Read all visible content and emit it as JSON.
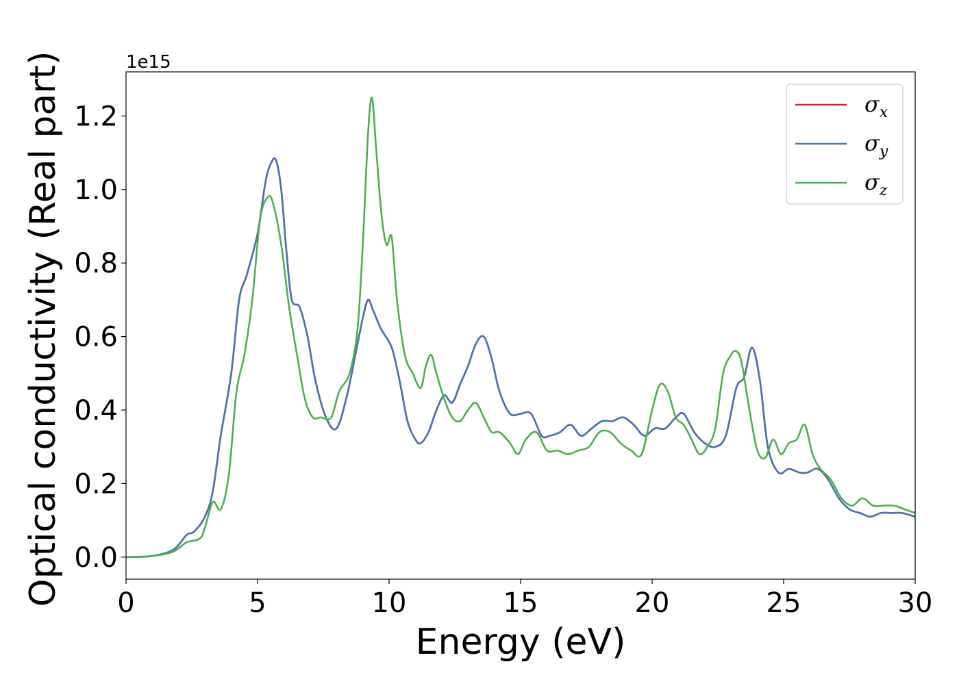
{
  "chart_data": {
    "type": "line",
    "xlabel": "Energy (eV)",
    "ylabel": "Optical conductivity (Real part)",
    "y_offset_text": "1e15",
    "xlim": [
      0,
      30
    ],
    "ylim": [
      -0.06,
      1.32
    ],
    "x_ticks": [
      0,
      5,
      10,
      15,
      20,
      25,
      30
    ],
    "x_tick_labels": [
      "0",
      "5",
      "10",
      "15",
      "20",
      "25",
      "30"
    ],
    "y_ticks": [
      0.0,
      0.2,
      0.4,
      0.6,
      0.8,
      1.0,
      1.2
    ],
    "y_tick_labels": [
      "0.0",
      "0.2",
      "0.4",
      "0.6",
      "0.8",
      "1.0",
      "1.2"
    ],
    "grid": false,
    "legend_position": "top-right",
    "series": [
      {
        "name": "σ_x",
        "legend_symbol": "σ",
        "legend_subscript": "x",
        "color": "#d62728",
        "x": [
          0,
          1,
          1.8,
          2.3,
          2.6,
          3.0,
          3.3,
          3.6,
          4.0,
          4.3,
          4.6,
          5.0,
          5.3,
          5.5,
          5.7,
          5.9,
          6.1,
          6.3,
          6.6,
          6.9,
          7.2,
          7.6,
          8.0,
          8.4,
          8.8,
          9.0,
          9.2,
          9.4,
          9.7,
          10.1,
          10.4,
          10.7,
          11.0,
          11.2,
          11.5,
          11.8,
          12.1,
          12.4,
          12.7,
          13.0,
          13.3,
          13.6,
          13.9,
          14.2,
          14.6,
          15.0,
          15.4,
          15.8,
          16.1,
          16.5,
          16.9,
          17.3,
          17.7,
          18.1,
          18.5,
          18.9,
          19.3,
          19.7,
          20.1,
          20.5,
          20.9,
          21.2,
          21.6,
          22.0,
          22.4,
          22.8,
          23.2,
          23.5,
          23.8,
          24.1,
          24.4,
          24.8,
          25.2,
          25.6,
          25.9,
          26.3,
          26.7,
          27.1,
          27.5,
          27.9,
          28.3,
          28.7,
          29.1,
          29.5,
          30
        ],
        "values": [
          0,
          0.003,
          0.02,
          0.06,
          0.07,
          0.11,
          0.18,
          0.33,
          0.5,
          0.7,
          0.77,
          0.88,
          1.02,
          1.07,
          1.08,
          1.0,
          0.83,
          0.7,
          0.68,
          0.6,
          0.48,
          0.38,
          0.35,
          0.44,
          0.58,
          0.65,
          0.7,
          0.67,
          0.62,
          0.57,
          0.48,
          0.37,
          0.32,
          0.31,
          0.34,
          0.4,
          0.44,
          0.42,
          0.47,
          0.52,
          0.58,
          0.6,
          0.54,
          0.45,
          0.39,
          0.39,
          0.39,
          0.33,
          0.33,
          0.34,
          0.36,
          0.33,
          0.35,
          0.37,
          0.37,
          0.38,
          0.36,
          0.33,
          0.35,
          0.35,
          0.38,
          0.39,
          0.34,
          0.31,
          0.3,
          0.33,
          0.46,
          0.49,
          0.57,
          0.48,
          0.3,
          0.23,
          0.24,
          0.23,
          0.23,
          0.24,
          0.21,
          0.16,
          0.13,
          0.12,
          0.11,
          0.12,
          0.12,
          0.12,
          0.11
        ]
      },
      {
        "name": "σ_y",
        "legend_symbol": "σ",
        "legend_subscript": "y",
        "color": "#4575b4",
        "x": [
          0,
          1,
          1.8,
          2.3,
          2.6,
          3.0,
          3.3,
          3.6,
          4.0,
          4.3,
          4.6,
          5.0,
          5.3,
          5.5,
          5.7,
          5.9,
          6.1,
          6.3,
          6.6,
          6.9,
          7.2,
          7.6,
          8.0,
          8.4,
          8.8,
          9.0,
          9.2,
          9.4,
          9.7,
          10.1,
          10.4,
          10.7,
          11.0,
          11.2,
          11.5,
          11.8,
          12.1,
          12.4,
          12.7,
          13.0,
          13.3,
          13.6,
          13.9,
          14.2,
          14.6,
          15.0,
          15.4,
          15.8,
          16.1,
          16.5,
          16.9,
          17.3,
          17.7,
          18.1,
          18.5,
          18.9,
          19.3,
          19.7,
          20.1,
          20.5,
          20.9,
          21.2,
          21.6,
          22.0,
          22.4,
          22.8,
          23.2,
          23.5,
          23.8,
          24.1,
          24.4,
          24.8,
          25.2,
          25.6,
          25.9,
          26.3,
          26.7,
          27.1,
          27.5,
          27.9,
          28.3,
          28.7,
          29.1,
          29.5,
          30
        ],
        "values": [
          0,
          0.003,
          0.02,
          0.06,
          0.07,
          0.11,
          0.18,
          0.33,
          0.5,
          0.7,
          0.77,
          0.88,
          1.02,
          1.07,
          1.08,
          1.0,
          0.83,
          0.7,
          0.68,
          0.6,
          0.48,
          0.38,
          0.35,
          0.44,
          0.58,
          0.65,
          0.7,
          0.67,
          0.62,
          0.57,
          0.48,
          0.37,
          0.32,
          0.31,
          0.34,
          0.4,
          0.44,
          0.42,
          0.47,
          0.52,
          0.58,
          0.6,
          0.54,
          0.45,
          0.39,
          0.39,
          0.39,
          0.33,
          0.33,
          0.34,
          0.36,
          0.33,
          0.35,
          0.37,
          0.37,
          0.38,
          0.36,
          0.33,
          0.35,
          0.35,
          0.38,
          0.39,
          0.34,
          0.31,
          0.3,
          0.33,
          0.46,
          0.49,
          0.57,
          0.48,
          0.3,
          0.23,
          0.24,
          0.23,
          0.23,
          0.24,
          0.21,
          0.16,
          0.13,
          0.12,
          0.11,
          0.12,
          0.12,
          0.12,
          0.11
        ]
      },
      {
        "name": "σ_z",
        "legend_symbol": "σ",
        "legend_subscript": "z",
        "color": "#4daf4a",
        "x": [
          0,
          1,
          1.8,
          2.3,
          2.8,
          3.0,
          3.3,
          3.6,
          3.9,
          4.2,
          4.5,
          4.8,
          5.1,
          5.4,
          5.6,
          5.9,
          6.2,
          6.5,
          6.8,
          7.1,
          7.4,
          7.8,
          8.1,
          8.5,
          8.8,
          9.0,
          9.2,
          9.35,
          9.5,
          9.7,
          9.9,
          10.1,
          10.3,
          10.6,
          10.9,
          11.2,
          11.4,
          11.6,
          11.8,
          12.1,
          12.4,
          12.7,
          13.0,
          13.3,
          13.6,
          13.9,
          14.2,
          14.6,
          14.9,
          15.2,
          15.6,
          16.0,
          16.4,
          16.8,
          17.2,
          17.6,
          18.0,
          18.4,
          18.8,
          19.2,
          19.6,
          20.0,
          20.3,
          20.6,
          20.9,
          21.2,
          21.5,
          21.8,
          22.1,
          22.4,
          22.7,
          23.0,
          23.2,
          23.4,
          23.7,
          24.0,
          24.3,
          24.6,
          24.9,
          25.2,
          25.5,
          25.8,
          26.1,
          26.4,
          26.8,
          27.2,
          27.6,
          28.0,
          28.4,
          28.8,
          29.2,
          29.6,
          30
        ],
        "values": [
          0,
          0.003,
          0.015,
          0.04,
          0.05,
          0.08,
          0.15,
          0.13,
          0.22,
          0.45,
          0.55,
          0.7,
          0.92,
          0.98,
          0.96,
          0.85,
          0.68,
          0.55,
          0.43,
          0.38,
          0.38,
          0.38,
          0.45,
          0.5,
          0.62,
          0.85,
          1.15,
          1.25,
          1.12,
          0.94,
          0.85,
          0.87,
          0.7,
          0.55,
          0.5,
          0.46,
          0.52,
          0.55,
          0.5,
          0.43,
          0.38,
          0.37,
          0.4,
          0.42,
          0.38,
          0.34,
          0.34,
          0.31,
          0.28,
          0.32,
          0.34,
          0.29,
          0.29,
          0.28,
          0.29,
          0.3,
          0.34,
          0.34,
          0.31,
          0.29,
          0.28,
          0.4,
          0.47,
          0.45,
          0.38,
          0.36,
          0.32,
          0.28,
          0.3,
          0.35,
          0.5,
          0.55,
          0.56,
          0.53,
          0.4,
          0.29,
          0.27,
          0.32,
          0.28,
          0.31,
          0.32,
          0.36,
          0.28,
          0.24,
          0.21,
          0.16,
          0.14,
          0.16,
          0.14,
          0.14,
          0.14,
          0.13,
          0.12
        ]
      }
    ]
  }
}
